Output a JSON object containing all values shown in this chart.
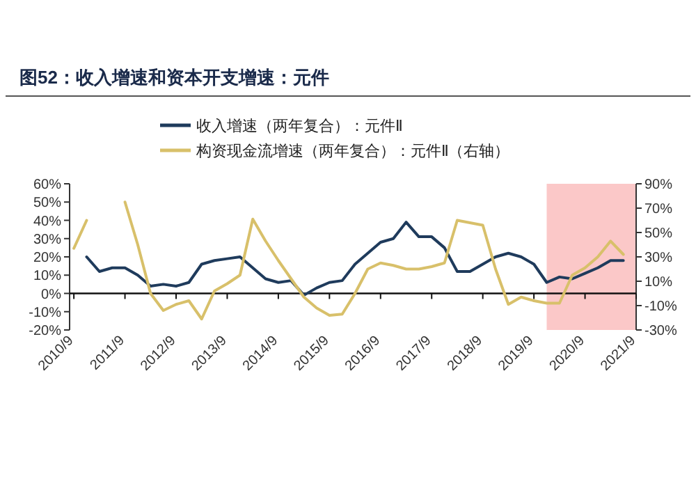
{
  "chart_data": {
    "type": "line",
    "title": "图52：收入增速和资本开支增速：元件",
    "x": [
      "2010-09",
      "2010-12",
      "2011-03",
      "2011-06",
      "2011-09",
      "2011-12",
      "2012-03",
      "2012-06",
      "2012-09",
      "2012-12",
      "2013-03",
      "2013-06",
      "2013-09",
      "2013-12",
      "2014-03",
      "2014-06",
      "2014-09",
      "2014-12",
      "2015-03",
      "2015-06",
      "2015-09",
      "2015-12",
      "2016-03",
      "2016-06",
      "2016-09",
      "2016-12",
      "2017-03",
      "2017-06",
      "2017-09",
      "2017-12",
      "2018-03",
      "2018-06",
      "2018-09",
      "2018-12",
      "2019-03",
      "2019-06",
      "2019-09",
      "2019-12",
      "2020-03",
      "2020-06",
      "2020-09",
      "2020-12",
      "2021-03",
      "2021-06"
    ],
    "series": [
      {
        "name": "收入增速（两年复合）：元件Ⅱ",
        "color": "#1f3b5c",
        "values": [
          null,
          20,
          12,
          14,
          14,
          10,
          4,
          5,
          4,
          6,
          16,
          18,
          19,
          20,
          14,
          8,
          6,
          7,
          -1,
          3,
          6,
          7,
          16,
          22,
          28,
          30,
          39,
          31,
          31,
          25,
          12,
          12,
          16,
          20,
          22,
          20,
          16,
          6,
          9,
          8,
          11,
          14,
          18,
          18
        ]
      },
      {
        "name": "构资现金流增速（两年复合）：元件Ⅱ（右轴）",
        "color": "#d8c06a",
        "axis": "y2",
        "values": [
          37,
          60,
          null,
          null,
          75,
          40,
          0,
          -14,
          -9,
          -6,
          -21,
          2,
          8,
          15,
          61,
          43,
          27,
          12,
          -3,
          -12,
          -18,
          -17,
          0,
          20,
          25,
          23,
          20,
          20,
          22,
          25,
          60,
          58,
          56,
          20,
          -9,
          -3,
          -6,
          -8,
          -8,
          15,
          21,
          30,
          43,
          32
        ]
      }
    ],
    "xlim": [
      "2010-08",
      "2021-09"
    ],
    "xticks": [
      {
        "value": "2010-09",
        "label": "2010/9"
      },
      {
        "value": "2011-09",
        "label": "2011/9"
      },
      {
        "value": "2012-09",
        "label": "2012/9"
      },
      {
        "value": "2013-09",
        "label": "2013/9"
      },
      {
        "value": "2014-09",
        "label": "2014/9"
      },
      {
        "value": "2015-09",
        "label": "2015/9"
      },
      {
        "value": "2016-09",
        "label": "2016/9"
      },
      {
        "value": "2017-09",
        "label": "2017/9"
      },
      {
        "value": "2018-09",
        "label": "2018/9"
      },
      {
        "value": "2019-09",
        "label": "2019/9"
      },
      {
        "value": "2020-09",
        "label": "2020/9"
      },
      {
        "value": "2021-09",
        "label": "2021/9"
      }
    ],
    "ylim": [
      -20,
      60
    ],
    "yticks": [
      {
        "value": -20,
        "label": "-20%"
      },
      {
        "value": -10,
        "label": "-10%"
      },
      {
        "value": 0,
        "label": "0%"
      },
      {
        "value": 10,
        "label": "10%"
      },
      {
        "value": 20,
        "label": "20%"
      },
      {
        "value": 30,
        "label": "30%"
      },
      {
        "value": 40,
        "label": "40%"
      },
      {
        "value": 50,
        "label": "50%"
      },
      {
        "value": 60,
        "label": "60%"
      }
    ],
    "y2lim": [
      -30,
      90
    ],
    "y2ticks": [
      {
        "value": -30,
        "label": "-30%"
      },
      {
        "value": -10,
        "label": "-10%"
      },
      {
        "value": 10,
        "label": "10%"
      },
      {
        "value": 30,
        "label": "30%"
      },
      {
        "value": 50,
        "label": "50%"
      },
      {
        "value": 70,
        "label": "70%"
      },
      {
        "value": 90,
        "label": "90%"
      }
    ],
    "bands": [
      {
        "axis": "x",
        "from": "2019-12",
        "to": "2021-09",
        "color": "#fbc8c8"
      }
    ],
    "legend": "top",
    "marker": "none",
    "line_style": "solid"
  }
}
